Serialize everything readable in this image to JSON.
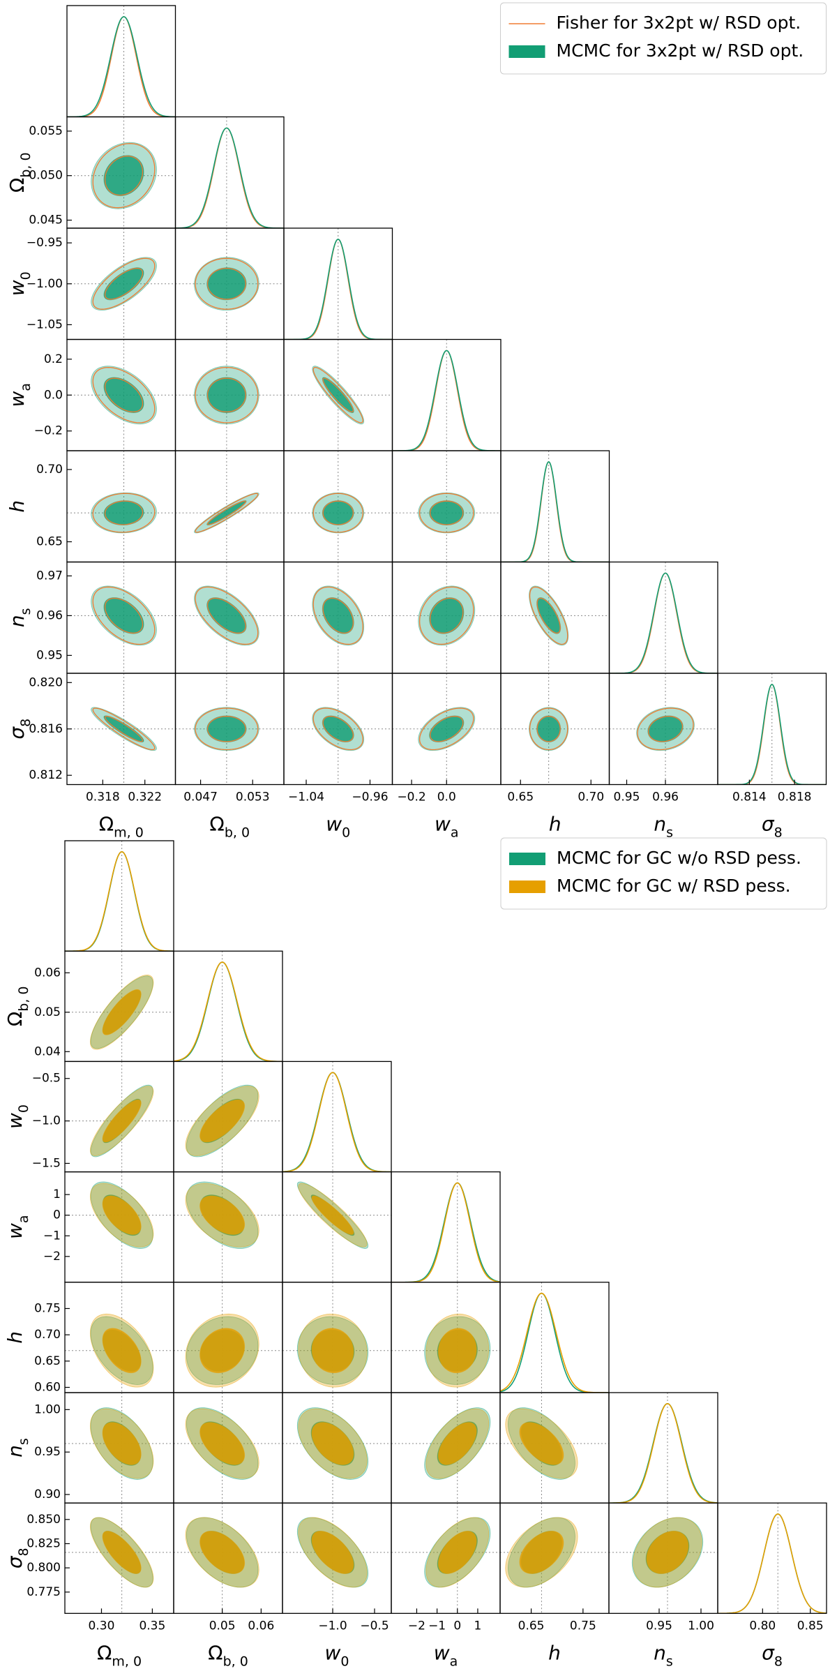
{
  "chart_data": [
    {
      "type": "corner",
      "legend": "upper right",
      "grid": false,
      "parameters": [
        {
          "symbol": "Ω",
          "subscript": "m, 0",
          "lim": [
            0.3146,
            0.3249
          ],
          "fiducial": 0.32,
          "xticks": [
            0.318,
            0.322
          ]
        },
        {
          "symbol": "Ω",
          "subscript": "b, 0",
          "lim": [
            0.0441,
            0.0566
          ],
          "fiducial": 0.05,
          "xticks": [
            0.047,
            0.053
          ],
          "yticks": [
            0.045,
            {
              "value": 0.05,
              "label": "0.050"
            },
            0.055
          ]
        },
        {
          "symbol": "w",
          "subscript": "0",
          "lim": [
            -1.068,
            -0.932
          ],
          "fiducial": -1,
          "xticks": [
            {
              "value": -1.04,
              "label": "−1.04"
            },
            {
              "value": -0.96,
              "label": "−0.96"
            }
          ],
          "yticks": [
            {
              "value": -1.05,
              "label": "−1.05"
            },
            {
              "value": -1,
              "label": "−1.00"
            },
            {
              "value": -0.95,
              "label": "−0.95"
            }
          ]
        },
        {
          "symbol": "w",
          "subscript": "a",
          "lim": [
            -0.31,
            0.31
          ],
          "fiducial": 0,
          "xticks": [
            {
              "value": -0.2,
              "label": "−0.2"
            },
            {
              "value": 0,
              "label": "0.0"
            }
          ],
          "yticks": [
            {
              "value": -0.2,
              "label": "−0.2"
            },
            {
              "value": 0,
              "label": "0.0"
            },
            0.2
          ]
        },
        {
          "symbol": "h",
          "lim": [
            0.636,
            0.713
          ],
          "fiducial": 0.67,
          "xticks": [
            0.65,
            {
              "value": 0.7,
              "label": "0.70"
            }
          ],
          "yticks": [
            0.65,
            {
              "value": 0.7,
              "label": "0.70"
            }
          ]
        },
        {
          "symbol": "n",
          "subscript": "s",
          "lim": [
            0.9455,
            0.9735
          ],
          "fiducial": 0.96,
          "xticks": [
            0.95,
            0.96
          ],
          "yticks": [
            0.95,
            0.96,
            0.97
          ]
        },
        {
          "symbol": "σ",
          "subscript": "8",
          "lim": [
            0.8112,
            0.8208
          ],
          "fiducial": 0.816,
          "xticks": [
            0.814,
            0.818
          ],
          "yticks": [
            0.812,
            0.816,
            {
              "value": 0.82,
              "label": "0.820"
            }
          ]
        }
      ],
      "series": [
        {
          "name": "Fisher for 3x2pt w/ RSD opt.",
          "color": "#f07c32",
          "style": "line",
          "sigma": [
            0.00118,
            0.00145,
            0.0125,
            0.062,
            0.0054,
            0.0029,
            0.00072
          ],
          "correlations": [
            0.2,
            0.7,
            0.0,
            -0.5,
            0.0,
            -0.92,
            0.05,
            0.95,
            0.0,
            0.0,
            -0.5,
            -0.6,
            -0.4,
            0.2,
            -0.7,
            -0.92,
            0.0,
            -0.5,
            0.5,
            0.0,
            0.2
          ]
        },
        {
          "name": "MCMC for 3x2pt w/ RSD opt.",
          "color": "#129e74",
          "style": "filled",
          "sigma": [
            0.00125,
            0.0015,
            0.013,
            0.065,
            0.0056,
            0.003,
            0.00075
          ],
          "correlations": [
            0.18,
            0.68,
            0.02,
            -0.48,
            0.0,
            -0.9,
            0.05,
            0.94,
            0.0,
            0.0,
            -0.48,
            -0.58,
            -0.38,
            0.18,
            -0.68,
            -0.9,
            0.0,
            -0.48,
            0.48,
            0.0,
            0.18
          ]
        }
      ]
    },
    {
      "type": "corner",
      "legend": "upper right",
      "grid": false,
      "parameters": [
        {
          "symbol": "Ω",
          "subscript": "m, 0",
          "lim": [
            0.264,
            0.371
          ],
          "fiducial": 0.32,
          "xticks": [
            {
              "value": 0.3,
              "label": "0.30"
            },
            0.35
          ]
        },
        {
          "symbol": "Ω",
          "subscript": "b, 0",
          "lim": [
            0.0375,
            0.0655
          ],
          "fiducial": 0.05,
          "xticks": [
            0.05,
            0.06
          ],
          "yticks": [
            0.04,
            0.05,
            0.06
          ]
        },
        {
          "symbol": "w",
          "subscript": "0",
          "lim": [
            -1.6,
            -0.3
          ],
          "fiducial": -1,
          "xticks": [
            {
              "value": -1,
              "label": "−1.0"
            },
            {
              "value": -0.5,
              "label": "−0.5"
            }
          ],
          "yticks": [
            {
              "value": -1.5,
              "label": "−1.5"
            },
            {
              "value": -1,
              "label": "−1.0"
            },
            {
              "value": -0.5,
              "label": "−0.5"
            }
          ]
        },
        {
          "symbol": "w",
          "subscript": "a",
          "lim": [
            -3.25,
            2.1
          ],
          "fiducial": 0,
          "xticks": [
            {
              "value": -2,
              "label": "−2"
            },
            {
              "value": -1,
              "label": "−1"
            },
            0,
            1
          ],
          "yticks": [
            {
              "value": -2,
              "label": "−2"
            },
            {
              "value": -1,
              "label": "−1"
            },
            0,
            1
          ]
        },
        {
          "symbol": "h",
          "lim": [
            0.59,
            0.8
          ],
          "fiducial": 0.67,
          "xticks": [
            0.65,
            0.75
          ],
          "yticks": [
            {
              "value": 0.6,
              "label": "0.60"
            },
            0.65,
            {
              "value": 0.7,
              "label": "0.70"
            },
            0.75
          ]
        },
        {
          "symbol": "n",
          "subscript": "s",
          "lim": [
            0.89,
            1.02
          ],
          "fiducial": 0.96,
          "xticks": [
            0.95,
            {
              "value": 1,
              "label": "1.00"
            }
          ],
          "yticks": [
            {
              "value": 0.9,
              "label": "0.90"
            },
            0.95,
            {
              "value": 1,
              "label": "1.00"
            }
          ]
        },
        {
          "symbol": "σ",
          "subscript": "8",
          "lim": [
            0.753,
            0.867
          ],
          "fiducial": 0.816,
          "xticks": [
            {
              "value": 0.8,
              "label": "0.80"
            },
            0.85
          ],
          "yticks": [
            0.775,
            {
              "value": 0.8,
              "label": "0.800"
            },
            0.825,
            {
              "value": 0.85,
              "label": "0.850"
            }
          ]
        }
      ],
      "series": [
        {
          "name": "MCMC for GC w/o RSD pess.",
          "color": "#129e74",
          "style": "filled",
          "sigma": [
            0.0123,
            0.0037,
            0.17,
            0.65,
            0.026,
            0.017,
            0.0145
          ],
          "correlations": [
            0.8,
            0.85,
            0.7,
            -0.6,
            -0.5,
            -0.92,
            -0.5,
            0.15,
            -0.05,
            0.05,
            -0.5,
            -0.55,
            -0.5,
            0.6,
            -0.55,
            -0.75,
            -0.5,
            -0.6,
            0.55,
            0.45,
            0.3
          ]
        },
        {
          "name": "MCMC for GC w/ RSD pess.",
          "color": "#e69f00",
          "style": "filled",
          "sigma": [
            0.0125,
            0.0038,
            0.165,
            0.62,
            0.028,
            0.0165,
            0.0145
          ],
          "correlations": [
            0.8,
            0.84,
            0.7,
            -0.58,
            -0.48,
            -0.9,
            -0.48,
            0.18,
            -0.05,
            0.05,
            -0.5,
            -0.55,
            -0.48,
            0.58,
            -0.55,
            -0.74,
            -0.5,
            -0.58,
            0.53,
            0.45,
            0.3
          ]
        }
      ]
    }
  ]
}
